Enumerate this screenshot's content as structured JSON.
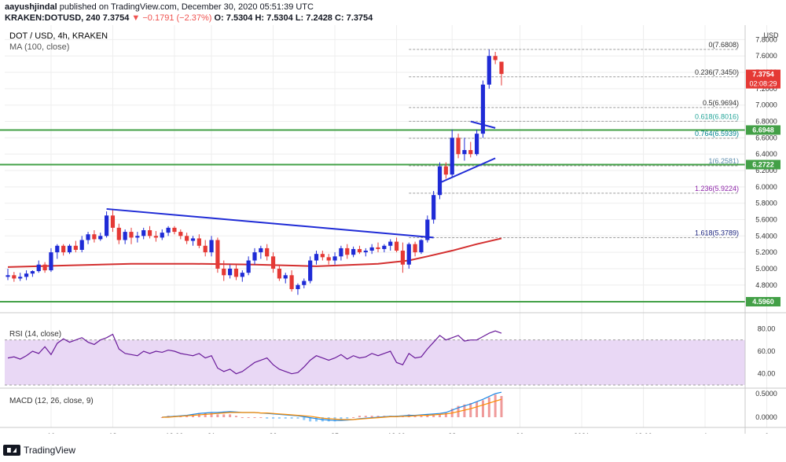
{
  "header": {
    "line1_user": "aayushjindal",
    "line1_rest": "published on TradingView.com, December 30, 2020 05:51:39 UTC",
    "line2_symbol": "KRAKEN:DOTUSD, 240",
    "line2_price": "7.3754",
    "line2_change": "▼ −0.1791 (−2.37%)",
    "line2_ohlc": "O: 7.5304 H: 7.5304 L: 7.2428 C: 7.3754"
  },
  "legend": {
    "symbol": "DOT / USD, 4h, KRAKEN",
    "ma": "MA (100, close)",
    "rsi": "RSI (14, close)",
    "macd": "MACD (12, 26, close, 9)"
  },
  "footer": {
    "brand": "TradingView"
  },
  "colors": {
    "up": "#1f2bd6",
    "down": "#e53935",
    "ma": "#d32f2f",
    "trend": "#1f2bd6",
    "support": "#43a047",
    "fib": "#9e9e9e",
    "rsi": "#6a1b9a",
    "rsi_band": "#e9d8f5",
    "macd": "#1e88e5",
    "signal": "#fb8c00",
    "hist": "#ef9a9a"
  },
  "chart_data": [
    {
      "type": "candlestick",
      "title": "DOT / USD, 4h, KRAKEN",
      "price_unit": "USD",
      "ylim": [
        4.5,
        7.9
      ],
      "y_ticks": [
        "7.8000",
        "7.6000",
        "7.4000",
        "7.2000",
        "7.0000",
        "6.8000",
        "6.6000",
        "6.4000",
        "6.2000",
        "6.0000",
        "5.8000",
        "5.6000",
        "5.4000",
        "5.2000",
        "5.0000",
        "4.8000"
      ],
      "x_ticks": [
        "16",
        "18",
        "12:00",
        "21",
        "23",
        "25",
        "12:00",
        "28",
        "30",
        "2021",
        "12:00",
        "4",
        "6"
      ],
      "x_tick_index": [
        7,
        17,
        27,
        33,
        43,
        53,
        63,
        72,
        83,
        93,
        103,
        113,
        123
      ],
      "candles": [
        [
          4.9,
          5.0,
          4.86,
          4.92
        ],
        [
          4.92,
          4.96,
          4.84,
          4.88
        ],
        [
          4.88,
          4.95,
          4.85,
          4.9
        ],
        [
          4.9,
          4.98,
          4.86,
          4.94
        ],
        [
          4.94,
          4.98,
          4.9,
          4.97
        ],
        [
          4.97,
          5.1,
          4.95,
          5.05
        ],
        [
          5.05,
          5.08,
          4.95,
          4.98
        ],
        [
          4.98,
          5.25,
          4.96,
          5.2
        ],
        [
          5.2,
          5.3,
          5.12,
          5.28
        ],
        [
          5.28,
          5.3,
          5.16,
          5.2
        ],
        [
          5.2,
          5.3,
          5.18,
          5.28
        ],
        [
          5.28,
          5.34,
          5.2,
          5.23
        ],
        [
          5.23,
          5.4,
          5.2,
          5.35
        ],
        [
          5.35,
          5.45,
          5.3,
          5.42
        ],
        [
          5.42,
          5.47,
          5.32,
          5.36
        ],
        [
          5.36,
          5.44,
          5.34,
          5.4
        ],
        [
          5.4,
          5.7,
          5.38,
          5.65
        ],
        [
          5.65,
          5.72,
          5.45,
          5.5
        ],
        [
          5.5,
          5.55,
          5.3,
          5.35
        ],
        [
          5.35,
          5.48,
          5.3,
          5.45
        ],
        [
          5.45,
          5.5,
          5.3,
          5.38
        ],
        [
          5.38,
          5.45,
          5.32,
          5.4
        ],
        [
          5.4,
          5.5,
          5.36,
          5.47
        ],
        [
          5.47,
          5.52,
          5.37,
          5.4
        ],
        [
          5.4,
          5.46,
          5.33,
          5.38
        ],
        [
          5.38,
          5.48,
          5.35,
          5.44
        ],
        [
          5.44,
          5.52,
          5.4,
          5.5
        ],
        [
          5.5,
          5.52,
          5.42,
          5.45
        ],
        [
          5.45,
          5.48,
          5.36,
          5.4
        ],
        [
          5.4,
          5.44,
          5.3,
          5.34
        ],
        [
          5.34,
          5.4,
          5.28,
          5.37
        ],
        [
          5.37,
          5.42,
          5.25,
          5.28
        ],
        [
          5.28,
          5.35,
          5.15,
          5.2
        ],
        [
          5.2,
          5.4,
          5.15,
          5.35
        ],
        [
          5.35,
          5.38,
          4.95,
          5.0
        ],
        [
          5.0,
          5.1,
          4.85,
          4.92
        ],
        [
          4.92,
          5.05,
          4.88,
          5.0
        ],
        [
          5.0,
          5.05,
          4.86,
          4.9
        ],
        [
          4.9,
          4.98,
          4.84,
          4.95
        ],
        [
          4.95,
          5.15,
          4.92,
          5.1
        ],
        [
          5.1,
          5.25,
          5.05,
          5.2
        ],
        [
          5.2,
          5.28,
          5.12,
          5.25
        ],
        [
          5.25,
          5.3,
          5.1,
          5.15
        ],
        [
          5.15,
          5.2,
          4.95,
          5.0
        ],
        [
          5.0,
          5.05,
          4.85,
          4.88
        ],
        [
          4.88,
          4.95,
          4.82,
          4.92
        ],
        [
          4.92,
          4.98,
          4.72,
          4.75
        ],
        [
          4.75,
          4.82,
          4.68,
          4.8
        ],
        [
          4.8,
          4.88,
          4.76,
          4.85
        ],
        [
          4.85,
          5.15,
          4.82,
          5.1
        ],
        [
          5.1,
          5.22,
          5.05,
          5.18
        ],
        [
          5.18,
          5.22,
          5.1,
          5.14
        ],
        [
          5.14,
          5.18,
          5.05,
          5.1
        ],
        [
          5.1,
          5.2,
          5.05,
          5.15
        ],
        [
          5.15,
          5.28,
          5.1,
          5.25
        ],
        [
          5.25,
          5.3,
          5.12,
          5.17
        ],
        [
          5.17,
          5.27,
          5.14,
          5.24
        ],
        [
          5.24,
          5.28,
          5.18,
          5.2
        ],
        [
          5.2,
          5.25,
          5.15,
          5.22
        ],
        [
          5.22,
          5.3,
          5.18,
          5.26
        ],
        [
          5.26,
          5.32,
          5.2,
          5.24
        ],
        [
          5.24,
          5.3,
          5.2,
          5.28
        ],
        [
          5.28,
          5.36,
          5.22,
          5.33
        ],
        [
          5.33,
          5.38,
          5.2,
          5.22
        ],
        [
          5.22,
          5.32,
          4.95,
          5.05
        ],
        [
          5.05,
          5.32,
          5.0,
          5.3
        ],
        [
          5.3,
          5.33,
          5.15,
          5.2
        ],
        [
          5.2,
          5.36,
          5.18,
          5.35
        ],
        [
          5.35,
          5.65,
          5.32,
          5.6
        ],
        [
          5.6,
          5.95,
          5.55,
          5.9
        ],
        [
          5.9,
          6.3,
          5.85,
          6.25
        ],
        [
          6.25,
          6.3,
          6.1,
          6.15
        ],
        [
          6.15,
          6.7,
          6.12,
          6.6
        ],
        [
          6.6,
          6.65,
          6.35,
          6.4
        ],
        [
          6.4,
          6.6,
          6.32,
          6.45
        ],
        [
          6.45,
          6.55,
          6.36,
          6.4
        ],
        [
          6.4,
          6.7,
          6.38,
          6.65
        ],
        [
          6.65,
          7.3,
          6.6,
          7.25
        ],
        [
          7.25,
          7.68,
          7.2,
          7.6
        ],
        [
          7.6,
          7.65,
          7.5,
          7.55
        ],
        [
          7.53,
          7.53,
          7.24,
          7.38
        ]
      ],
      "ma_100": [
        [
          0,
          5.02
        ],
        [
          10,
          5.04
        ],
        [
          20,
          5.06
        ],
        [
          30,
          5.06
        ],
        [
          40,
          5.05
        ],
        [
          50,
          5.03
        ],
        [
          60,
          5.06
        ],
        [
          65,
          5.1
        ],
        [
          68,
          5.15
        ],
        [
          72,
          5.22
        ],
        [
          76,
          5.3
        ],
        [
          80,
          5.37
        ]
      ],
      "support_lines": [
        "6.6948",
        "6.2722",
        "4.5960"
      ],
      "trend_lines": [
        {
          "points": [
            [
              16,
              5.73
            ],
            [
              69,
              5.38
            ]
          ]
        },
        {
          "points": [
            [
              70,
              6.05
            ],
            [
              79,
              6.35
            ]
          ]
        },
        {
          "points": [
            [
              75,
              6.8
            ],
            [
              79,
              6.72
            ]
          ]
        }
      ],
      "fib_levels": [
        {
          "ratio": "0",
          "price": "7.6808"
        },
        {
          "ratio": "0.236",
          "price": "7.3450"
        },
        {
          "ratio": "0.5",
          "price": "6.9694"
        },
        {
          "ratio": "0.618",
          "price": "6.8016"
        },
        {
          "ratio": "0.764",
          "price": "6.5939"
        },
        {
          "ratio": "1",
          "price": "6.2581"
        },
        {
          "ratio": "1.236",
          "price": "5.9224"
        },
        {
          "ratio": "1.618",
          "price": "5.3789"
        }
      ],
      "price_badges": [
        {
          "label": "7.3754",
          "sub": "02:08:29",
          "price": 7.3754,
          "color": "#e53935"
        },
        {
          "label": "6.6948",
          "price": 6.6948,
          "color": "#43a047"
        },
        {
          "label": "6.2722",
          "price": 6.2722,
          "color": "#43a047"
        },
        {
          "label": "4.5960",
          "price": 4.596,
          "color": "#43a047"
        }
      ]
    },
    {
      "type": "line",
      "title": "RSI (14, close)",
      "ylim": [
        30,
        90
      ],
      "y_ticks": [
        "80.00",
        "60.00",
        "40.00"
      ],
      "band": [
        30,
        70
      ],
      "values": [
        54,
        55,
        53,
        56,
        60,
        58,
        64,
        57,
        67,
        71,
        68,
        70,
        72,
        68,
        66,
        70,
        72,
        75,
        62,
        58,
        57,
        56,
        60,
        58,
        60,
        59,
        61,
        60,
        58,
        57,
        56,
        58,
        54,
        56,
        45,
        42,
        44,
        40,
        42,
        46,
        50,
        52,
        54,
        48,
        44,
        42,
        40,
        41,
        46,
        52,
        56,
        54,
        52,
        54,
        57,
        53,
        56,
        54,
        55,
        58,
        56,
        58,
        60,
        50,
        48,
        58,
        54,
        55,
        62,
        68,
        74,
        70,
        72,
        74,
        69,
        70,
        70,
        73,
        76,
        78,
        76
      ]
    },
    {
      "type": "line",
      "title": "MACD (12, 26, close, 9)",
      "ylim": [
        -0.15,
        0.55
      ],
      "y_ticks": [
        "0.5000",
        "0.0000"
      ],
      "macd": [
        0.0,
        0.01,
        0.02,
        0.03,
        0.04,
        0.06,
        0.08,
        0.09,
        0.1,
        0.1,
        0.11,
        0.12,
        0.11,
        0.1,
        0.1,
        0.1,
        0.09,
        0.08,
        0.07,
        0.06,
        0.05,
        0.04,
        0.03,
        0.01,
        -0.01,
        -0.03,
        -0.05,
        -0.06,
        -0.07,
        -0.07,
        -0.06,
        -0.05,
        -0.03,
        -0.02,
        -0.01,
        0.0,
        0.01,
        0.02,
        0.02,
        0.03,
        0.04,
        0.04,
        0.05,
        0.06,
        0.07,
        0.08,
        0.1,
        0.15,
        0.2,
        0.24,
        0.28,
        0.33,
        0.38,
        0.44,
        0.5,
        0.53
      ],
      "signal": [
        0.0,
        0.0,
        0.01,
        0.02,
        0.03,
        0.04,
        0.05,
        0.06,
        0.07,
        0.08,
        0.09,
        0.1,
        0.1,
        0.1,
        0.1,
        0.1,
        0.09,
        0.09,
        0.08,
        0.07,
        0.06,
        0.05,
        0.04,
        0.03,
        0.02,
        0.0,
        -0.02,
        -0.03,
        -0.04,
        -0.05,
        -0.05,
        -0.05,
        -0.04,
        -0.03,
        -0.02,
        -0.01,
        0.0,
        0.01,
        0.01,
        0.02,
        0.02,
        0.03,
        0.04,
        0.04,
        0.05,
        0.06,
        0.07,
        0.09,
        0.12,
        0.15,
        0.18,
        0.22,
        0.26,
        0.3,
        0.34,
        0.38
      ]
    }
  ]
}
